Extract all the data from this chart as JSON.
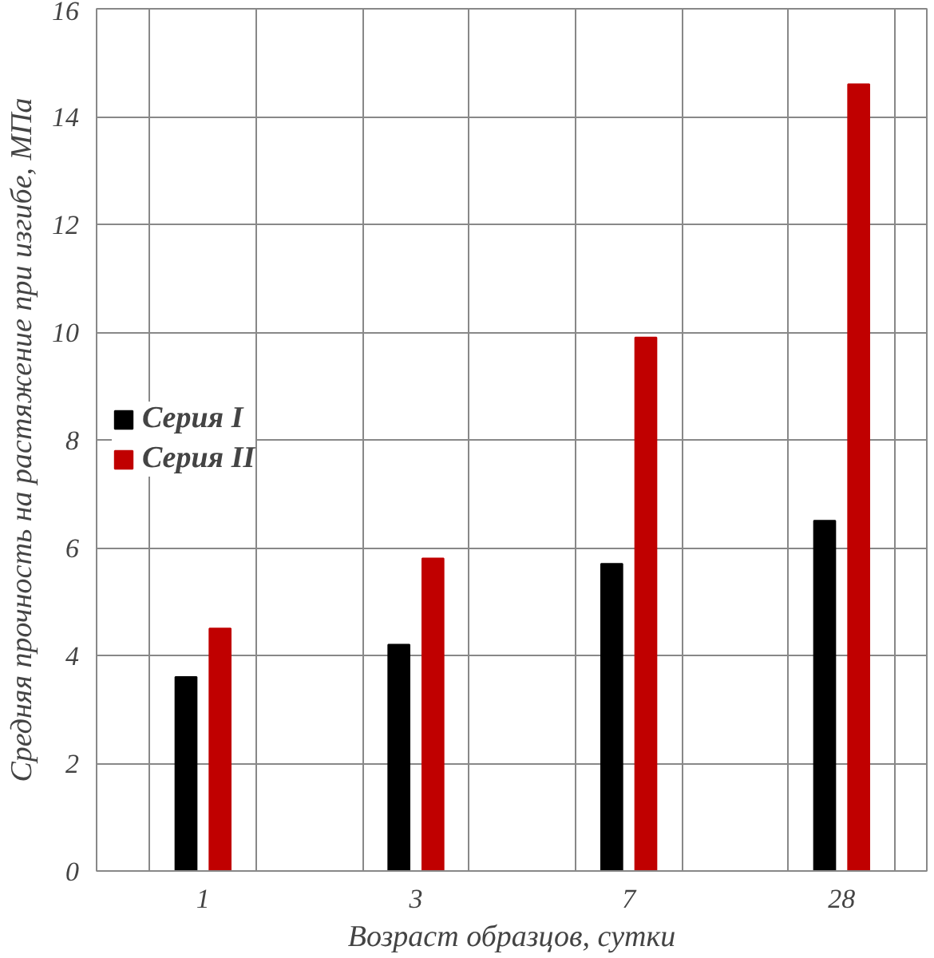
{
  "chart_data": {
    "type": "bar",
    "xlabel": "Возраст образцов, сутки",
    "ylabel": "Средняя прочность на растяжение при изгибе, МПа",
    "categories": [
      "1",
      "3",
      "7",
      "28"
    ],
    "series": [
      {
        "name": "Серия I",
        "color": "#000000",
        "values": [
          3.6,
          4.2,
          5.7,
          6.5
        ]
      },
      {
        "name": "Серия II",
        "color": "#c00000",
        "values": [
          4.5,
          5.8,
          9.9,
          14.6
        ]
      }
    ],
    "ylim": [
      0,
      16
    ],
    "yticks": [
      0,
      2,
      4,
      6,
      8,
      10,
      12,
      14,
      16
    ],
    "grid": true,
    "legend": "left"
  }
}
